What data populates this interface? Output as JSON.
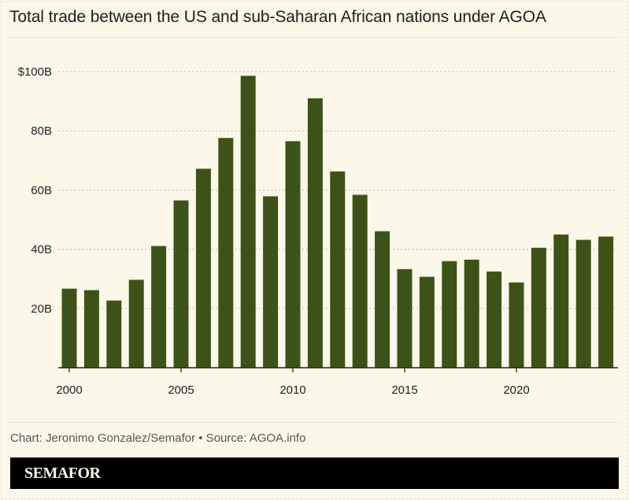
{
  "title": "Total trade between the US and sub-Saharan African nations under AGOA",
  "credit": "Chart: Jeronimo Gonzalez/Semafor • Source: AGOA.info",
  "brand": "SEMAFOR",
  "colors": {
    "bar": "#3d5219",
    "background": "#fbf8e9",
    "grid": "#bdbaa8"
  },
  "chart_data": {
    "type": "bar",
    "title": "Total trade between the US and sub-Saharan African nations under AGOA",
    "xlabel": "",
    "ylabel": "",
    "categories": [
      2000,
      2001,
      2002,
      2003,
      2004,
      2005,
      2006,
      2007,
      2008,
      2009,
      2010,
      2011,
      2012,
      2013,
      2014,
      2015,
      2016,
      2017,
      2018,
      2019,
      2020,
      2021,
      2022,
      2023,
      2024
    ],
    "values": [
      26.7,
      26.2,
      22.7,
      29.7,
      41.1,
      56.5,
      67.2,
      77.6,
      98.6,
      57.9,
      76.5,
      91.0,
      66.3,
      58.4,
      46.1,
      33.3,
      30.7,
      36.0,
      36.5,
      32.5,
      28.8,
      40.5,
      45.0,
      43.2,
      44.3
    ],
    "unit": "billion USD",
    "ylim": [
      0,
      100
    ],
    "yticks": [
      {
        "value": 20,
        "label": "20B"
      },
      {
        "value": 40,
        "label": "40B"
      },
      {
        "value": 60,
        "label": "60B"
      },
      {
        "value": 80,
        "label": "80B"
      },
      {
        "value": 100,
        "label": "$100B"
      }
    ],
    "xticks": [
      {
        "value": 2000,
        "label": "2000"
      },
      {
        "value": 2005,
        "label": "2005"
      },
      {
        "value": 2010,
        "label": "2010"
      },
      {
        "value": 2015,
        "label": "2015"
      },
      {
        "value": 2020,
        "label": "2020"
      }
    ],
    "grid": true,
    "legend": "none"
  }
}
